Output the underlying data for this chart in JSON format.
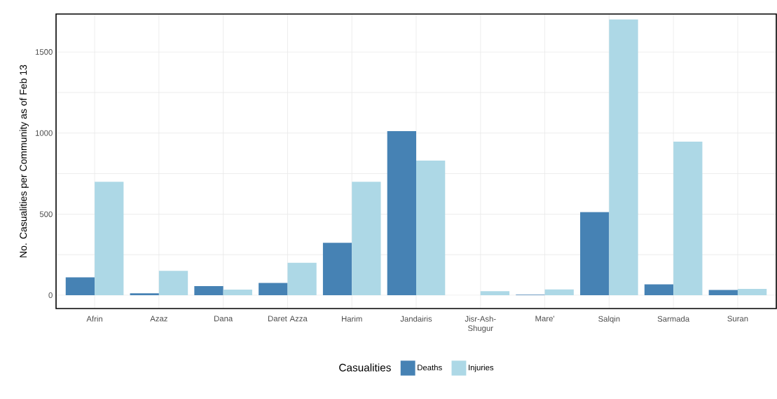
{
  "chart_data": {
    "type": "bar",
    "ylabel": "No. Casualities per Community as of Feb 13",
    "legend_title": "Casualities",
    "categories": [
      "Afrin",
      "Azaz",
      "Dana",
      "Daret Azza",
      "Harim",
      "Jandairis",
      "Jisr-Ash-Shugur",
      "Mare'",
      "Salqin",
      "Sarmada",
      "Suran"
    ],
    "series": [
      {
        "name": "Deaths",
        "color": "#4682b4",
        "values": [
          110,
          12,
          56,
          76,
          323,
          1012,
          0,
          3,
          512,
          67,
          33
        ]
      },
      {
        "name": "Injuries",
        "color": "#add8e6",
        "values": [
          700,
          150,
          35,
          200,
          700,
          830,
          25,
          36,
          1700,
          947,
          39
        ]
      }
    ],
    "ylim": [
      -82,
      1734
    ],
    "yticks": [
      0,
      {
        "value": 250,
        "label": null
      },
      500,
      {
        "value": 750,
        "label": null
      },
      1000,
      {
        "value": 1250,
        "label": null
      },
      1500
    ],
    "grid": true,
    "legend": "bottom"
  }
}
